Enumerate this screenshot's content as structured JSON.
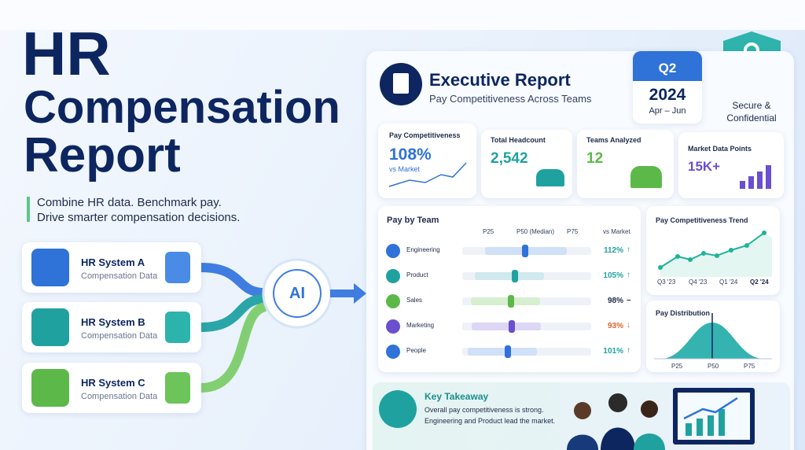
{
  "hero": {
    "title_lines": [
      "HR",
      "Compensation",
      "Report"
    ],
    "tagline_lines": [
      "Combine HR data. Benchmark pay.",
      "Drive smarter compensation decisions."
    ]
  },
  "sources": [
    {
      "name": "HR System A",
      "subtitle": "Compensation Data"
    },
    {
      "name": "HR System B",
      "subtitle": "Compensation Data"
    },
    {
      "name": "HR System C",
      "subtitle": "Compensation Data"
    }
  ],
  "ai_label": "AI",
  "report": {
    "title": "Executive Report",
    "subtitle": "Pay Competitiveness Across Teams",
    "quarter": "Q2",
    "year": "2024",
    "months": "Apr – Jun",
    "badge_lines": [
      "Secure &",
      "Confidential"
    ]
  },
  "kpis": [
    {
      "label": "Pay Competitiveness",
      "value": "108%",
      "note": "vs Market"
    },
    {
      "label": "Total Headcount",
      "value": "2,542"
    },
    {
      "label": "Teams Analyzed",
      "value": "12"
    },
    {
      "label": "Market Data Points",
      "value": "15K+"
    }
  ],
  "pay_by_team": {
    "title": "Pay by Team",
    "columns": [
      "P25",
      "P50 (Median)",
      "P75",
      "vs Market"
    ],
    "rows": [
      {
        "team": "Engineering",
        "vs_market": "112%",
        "trend": "↑"
      },
      {
        "team": "Product",
        "vs_market": "105%",
        "trend": "↑"
      },
      {
        "team": "Sales",
        "vs_market": "98%",
        "trend": "–"
      },
      {
        "team": "Marketing",
        "vs_market": "93%",
        "trend": "↓"
      },
      {
        "team": "People",
        "vs_market": "101%",
        "trend": "↑"
      }
    ]
  },
  "trend": {
    "title": "Pay Competitiveness Trend",
    "labels": [
      "Q3 '23",
      "Q4 '23",
      "Q1 '24",
      "Q2 '24"
    ]
  },
  "distribution": {
    "title": "Pay Distribution",
    "labels": [
      "P25",
      "P50",
      "P75"
    ]
  },
  "takeaway": {
    "title": "Key Takeaway",
    "lines": [
      "Overall pay competitiveness is strong.",
      "Engineering and Product lead the market."
    ]
  }
}
